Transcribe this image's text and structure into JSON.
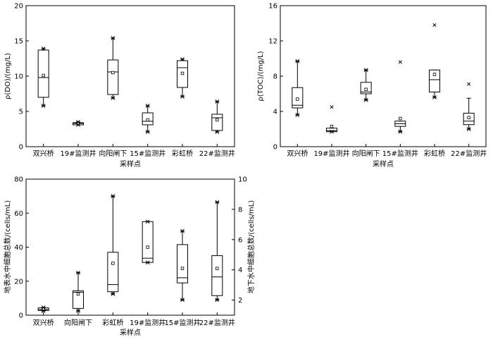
{
  "chart_data": [
    {
      "type": "box",
      "xlabel": "采样点",
      "ylabel": "ρ(DO)/(mg/L)",
      "ylim": [
        0,
        20
      ],
      "yticks": [
        "0",
        "5",
        "10",
        "15",
        "20"
      ],
      "categories": [
        "双兴桥",
        "19#监测井",
        "向阳闸下",
        "15#监测井",
        "彩虹桥",
        "22#监测井"
      ],
      "boxes": [
        {
          "min": 5.8,
          "q1": 7.0,
          "median": 9.8,
          "q3": 13.7,
          "max": 13.9,
          "mean": 10.1,
          "outliers_low": [
            5.8
          ],
          "outliers_high": [
            13.9
          ]
        },
        {
          "min": 3.1,
          "q1": 3.1,
          "median": 3.3,
          "q3": 3.4,
          "max": 3.5,
          "mean": 3.3,
          "outliers_low": [
            3.1
          ],
          "outliers_high": [
            3.5
          ]
        },
        {
          "min": 6.9,
          "q1": 7.4,
          "median": 10.6,
          "q3": 12.3,
          "max": 15.4,
          "mean": 10.5,
          "outliers_low": [
            6.9
          ],
          "outliers_high": [
            15.4
          ]
        },
        {
          "min": 2.1,
          "q1": 3.1,
          "median": 3.6,
          "q3": 4.8,
          "max": 5.8,
          "mean": 3.8,
          "outliers_low": [
            2.1
          ],
          "outliers_high": [
            5.8
          ]
        },
        {
          "min": 7.1,
          "q1": 8.4,
          "median": 11.2,
          "q3": 12.2,
          "max": 12.4,
          "mean": 10.4,
          "outliers_low": [
            7.1
          ],
          "outliers_high": [
            12.4
          ]
        },
        {
          "min": 2.1,
          "q1": 2.3,
          "median": 4.1,
          "q3": 4.6,
          "max": 6.4,
          "mean": 3.8,
          "outliers_low": [
            2.1
          ],
          "outliers_high": [
            6.4
          ]
        }
      ]
    },
    {
      "type": "box",
      "xlabel": "采样点",
      "ylabel": "ρ(TOC)/(mg/L)",
      "ylim": [
        0,
        16
      ],
      "yticks": [
        "0",
        "4",
        "8",
        "12",
        "16"
      ],
      "categories": [
        "双兴桥",
        "19#监测井",
        "向阳闸下",
        "15#监测井",
        "彩虹桥",
        "22#监测井"
      ],
      "boxes": [
        {
          "min": 3.6,
          "q1": 4.4,
          "median": 4.7,
          "q3": 6.7,
          "max": 9.7,
          "mean": 5.4,
          "outliers_low": [
            3.6
          ],
          "outliers_high": [
            9.7
          ],
          "extremes": []
        },
        {
          "min": 1.7,
          "q1": 1.7,
          "median": 1.8,
          "q3": 2.1,
          "max": 2.1,
          "mean": 2.3,
          "outliers_low": [
            1.7
          ],
          "outliers_high": [],
          "extremes": [
            4.5
          ]
        },
        {
          "min": 5.3,
          "q1": 6.0,
          "median": 6.2,
          "q3": 7.3,
          "max": 8.7,
          "mean": 6.5,
          "outliers_low": [
            5.3
          ],
          "outliers_high": [
            8.7
          ],
          "extremes": []
        },
        {
          "min": 1.7,
          "q1": 2.3,
          "median": 2.6,
          "q3": 2.9,
          "max": 2.9,
          "mean": 3.2,
          "outliers_low": [
            1.7
          ],
          "outliers_high": [],
          "extremes": [
            9.6
          ]
        },
        {
          "min": 5.6,
          "q1": 6.2,
          "median": 7.6,
          "q3": 8.7,
          "max": 8.7,
          "mean": 8.2,
          "outliers_low": [
            5.6
          ],
          "outliers_high": [],
          "extremes": [
            13.8
          ]
        },
        {
          "min": 2.0,
          "q1": 2.5,
          "median": 2.9,
          "q3": 3.8,
          "max": 5.5,
          "mean": 3.3,
          "outliers_low": [
            2.0
          ],
          "outliers_high": [],
          "extremes": [
            7.1
          ]
        }
      ]
    },
    {
      "type": "box",
      "xlabel": "采样点",
      "ylabel": "地表水中细胞总数/(cells/mL)",
      "y2label": "地下水中细胞总数/(cells/mL)",
      "ylim": [
        0,
        80
      ],
      "yticks": [
        "0",
        "20",
        "40",
        "60",
        "80"
      ],
      "y2lim": [
        1,
        10
      ],
      "y2ticks": [
        "2",
        "4",
        "6",
        "8",
        "10"
      ],
      "categories": [
        "双兴桥",
        "向阳闸下",
        "彩虹桥",
        "19#监测井",
        "15#监测井",
        "22#监测井"
      ],
      "boxes": [
        {
          "min": 2.5,
          "q1": 2.8,
          "median": 3.3,
          "q3": 4.3,
          "max": 4.5,
          "mean": 3.8,
          "outliers_low": [
            2.5
          ],
          "outliers_high": [
            4.5
          ]
        },
        {
          "min": 2.5,
          "q1": 4.0,
          "median": 13.5,
          "q3": 14.3,
          "max": 25.0,
          "mean": 12.5,
          "outliers_low": [
            2.5
          ],
          "outliers_high": [
            25.0
          ]
        },
        {
          "min": 12.5,
          "q1": 13.8,
          "median": 18.0,
          "q3": 37.0,
          "max": 70.0,
          "mean": 30.5,
          "outliers_low": [
            12.5
          ],
          "outliers_high": [
            70.0
          ]
        },
        {
          "min": 31.0,
          "q1": 31.0,
          "median": 33.5,
          "q3": 55.0,
          "max": 55.0,
          "mean": 40.0,
          "outliers_low": [
            31.0
          ],
          "outliers_high": [
            55.0
          ]
        },
        {
          "min": 9.0,
          "q1": 19.0,
          "median": 22.0,
          "q3": 41.5,
          "max": 49.5,
          "mean": 27.5,
          "outliers_low": [
            9.0
          ],
          "outliers_high": [
            49.5
          ]
        },
        {
          "min": 9.0,
          "q1": 11.5,
          "median": 22.5,
          "q3": 35.0,
          "max": 66.5,
          "mean": 27.5,
          "outliers_low": [
            9.0
          ],
          "outliers_high": [
            66.5
          ]
        }
      ]
    }
  ]
}
